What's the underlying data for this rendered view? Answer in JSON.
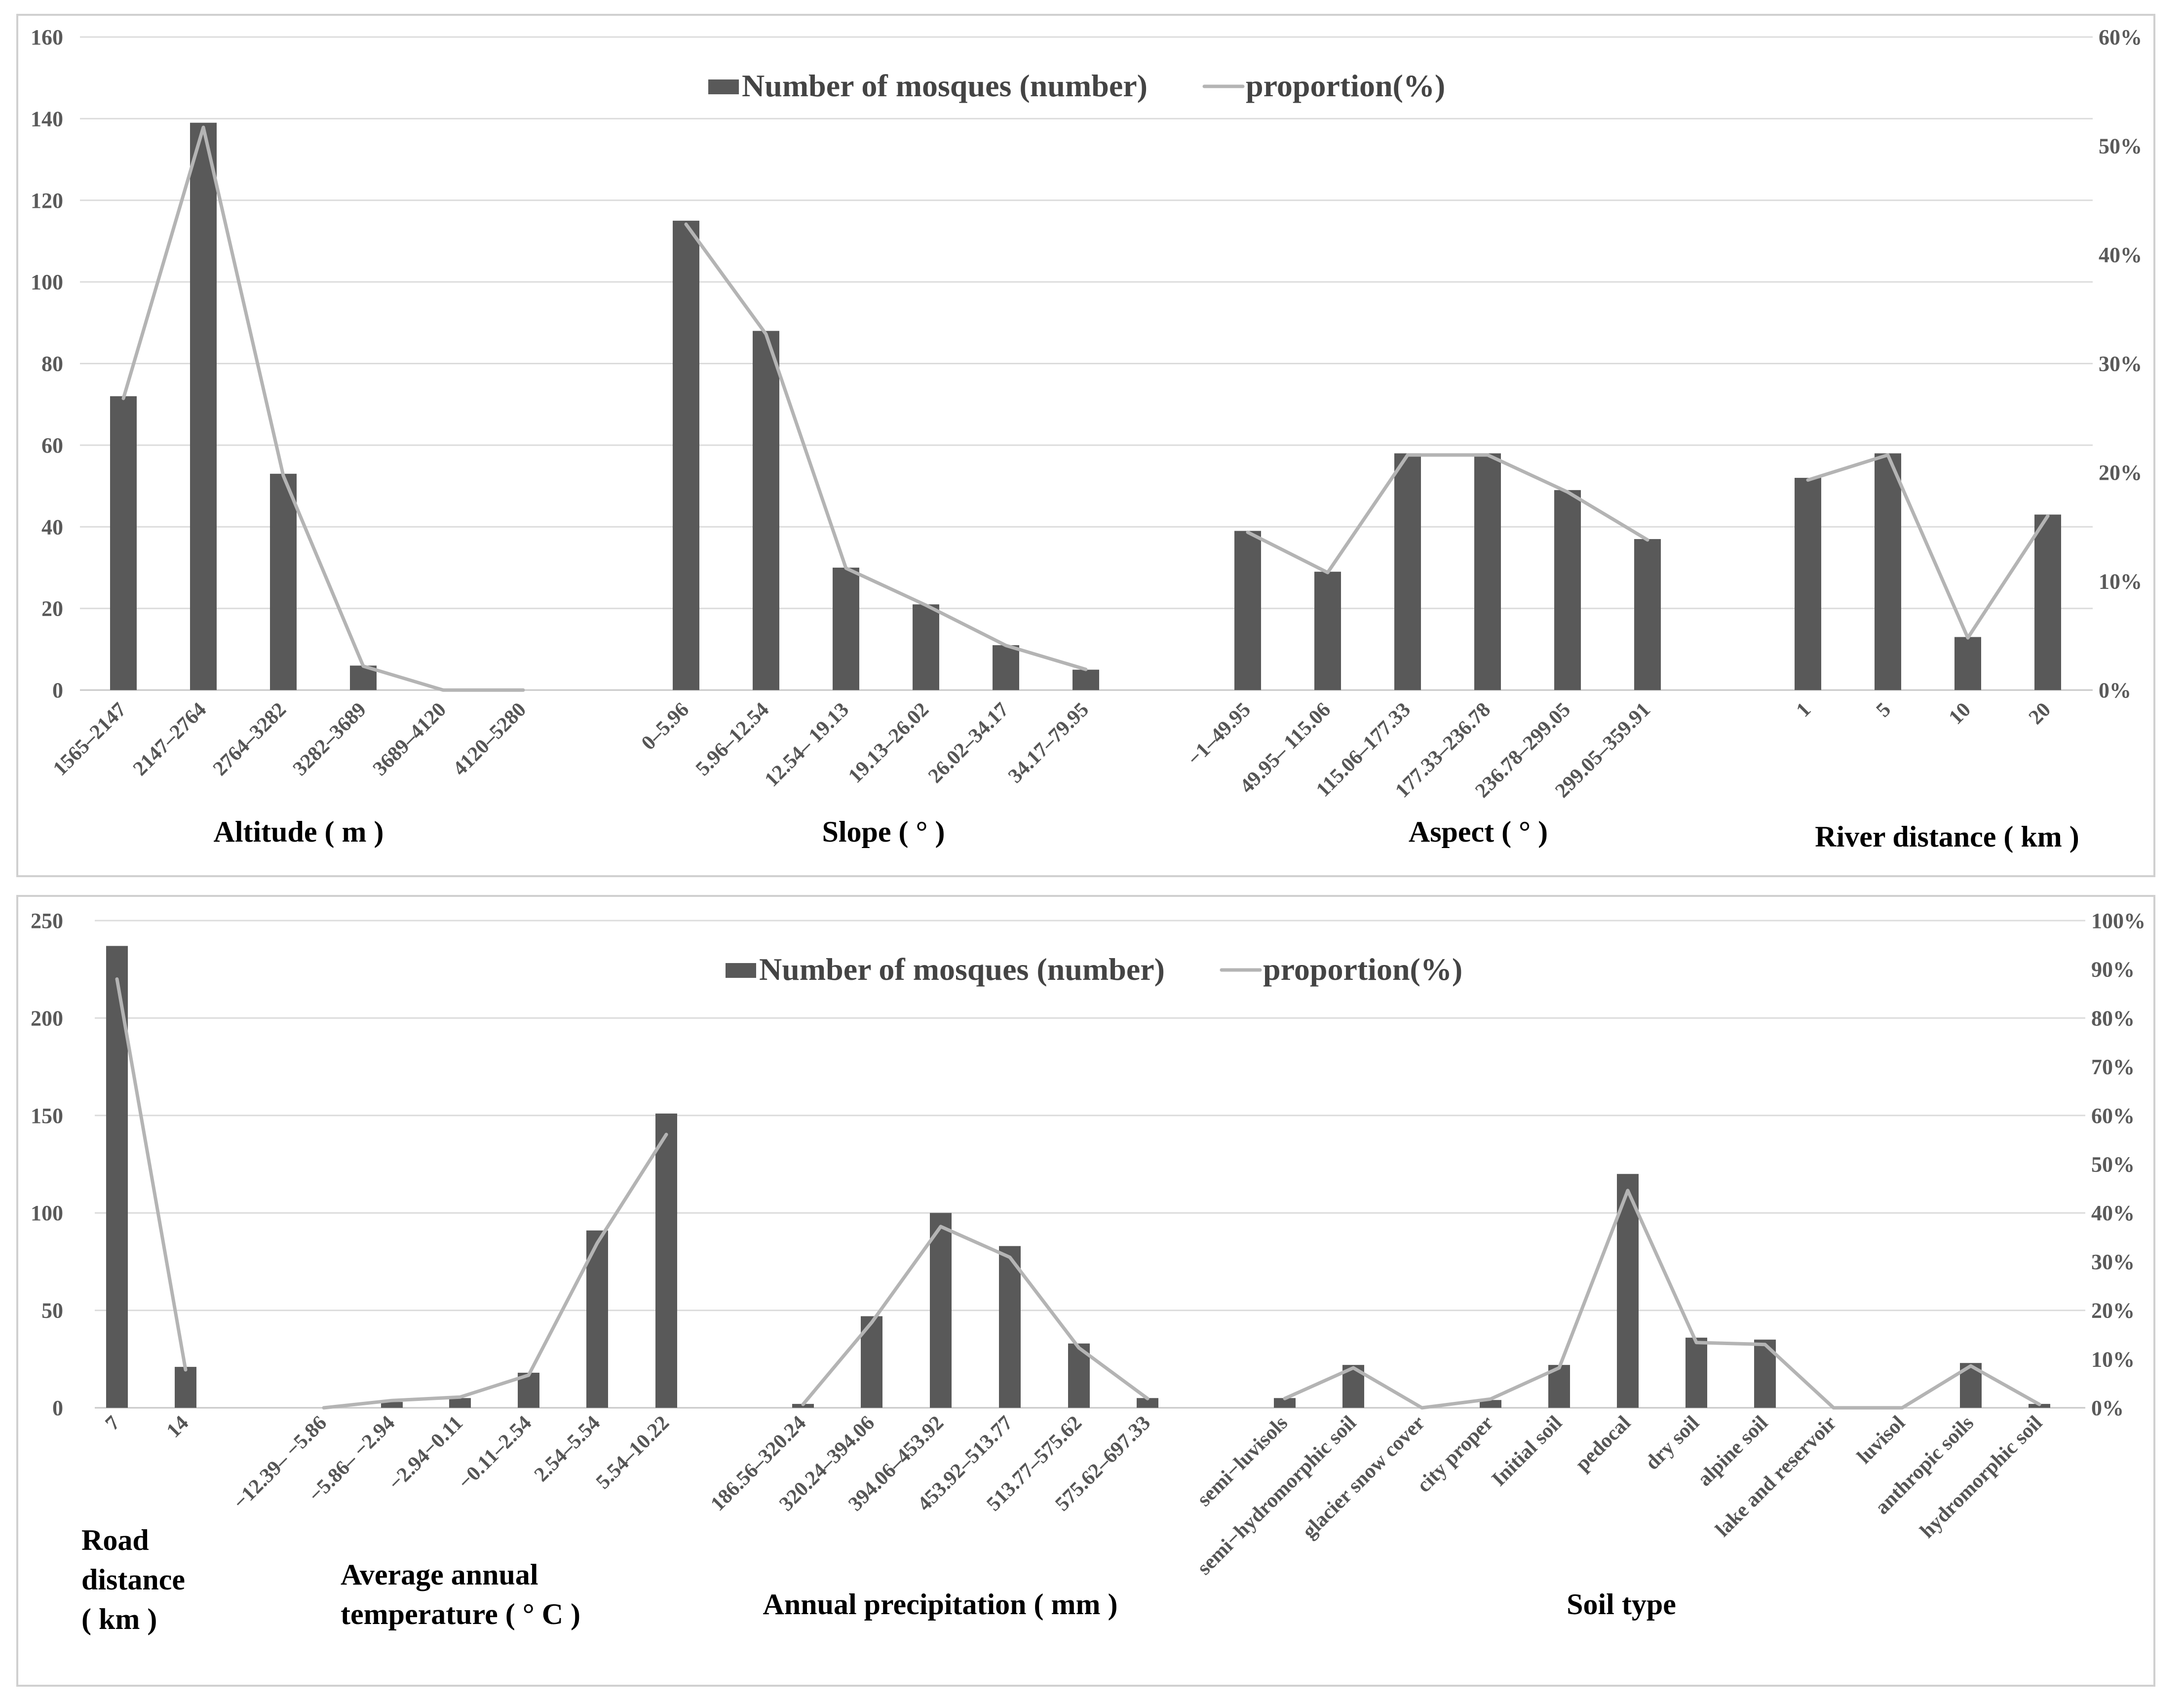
{
  "colors": {
    "bar": "#595959",
    "line": "#b4b4b4",
    "grid": "#dcdcdc",
    "frame": "#d0d0d0",
    "tick_text": "#5a5a5a"
  },
  "chart_data": [
    {
      "type": "bar",
      "panel": "top",
      "legend": {
        "bar_label": "Number of mosques (number)",
        "line_label": "proportion(%)"
      },
      "y_left": {
        "ylim": [
          0,
          160
        ],
        "ticks": [
          0,
          20,
          40,
          60,
          80,
          100,
          120,
          140,
          160
        ]
      },
      "y_right": {
        "ylim": [
          0,
          60
        ],
        "ticks": [
          "0%",
          "10%",
          "20%",
          "30%",
          "40%",
          "50%",
          "60%"
        ]
      },
      "groups": [
        {
          "title": "Altitude ( m )",
          "categories": [
            "1565–2147",
            "2147–2764",
            "2764–3282",
            "3282–3689",
            "3689–4120",
            "4120–5280"
          ],
          "values": [
            72,
            139,
            53,
            6,
            0,
            0
          ],
          "proportions": [
            26.8,
            51.7,
            19.7,
            2.2,
            0,
            0
          ]
        },
        {
          "title": "Slope ( ° )",
          "categories": [
            "0–5.96",
            "5.96–12.54",
            "12.54– 19.13",
            "19.13–26.02",
            "26.02–34.17",
            "34.17–79.95"
          ],
          "values": [
            115,
            88,
            30,
            21,
            11,
            5
          ],
          "proportions": [
            42.8,
            32.7,
            11.2,
            7.8,
            4.1,
            1.9
          ]
        },
        {
          "title": "Aspect ( ° )",
          "categories": [
            "−1–49.95",
            "49.95– 115.06",
            "115.06–177.33",
            "177.33–236.78",
            "236.78–299.05",
            "299.05–359.91"
          ],
          "values": [
            39,
            29,
            58,
            58,
            49,
            37
          ],
          "proportions": [
            14.5,
            10.8,
            21.6,
            21.6,
            18.2,
            13.8
          ]
        },
        {
          "title": "River distance ( km )",
          "categories": [
            "1",
            "5",
            "10",
            "20"
          ],
          "values": [
            52,
            58,
            13,
            43
          ],
          "proportions": [
            19.3,
            21.6,
            4.8,
            16.0
          ]
        }
      ]
    },
    {
      "type": "bar",
      "panel": "bottom",
      "legend": {
        "bar_label": "Number of mosques (number)",
        "line_label": "proportion(%)"
      },
      "y_left": {
        "ylim": [
          0,
          250
        ],
        "ticks": [
          0,
          50,
          100,
          150,
          200,
          250
        ]
      },
      "y_right": {
        "ylim": [
          0,
          100
        ],
        "ticks": [
          "0%",
          "10%",
          "20%",
          "30%",
          "40%",
          "50%",
          "60%",
          "70%",
          "80%",
          "90%",
          "100%"
        ]
      },
      "groups": [
        {
          "title": "Road distance ( km )",
          "title_lines": [
            "Road",
            "distance",
            "( km )"
          ],
          "categories": [
            "7",
            "14"
          ],
          "values": [
            237,
            21
          ],
          "proportions": [
            88.0,
            7.8
          ]
        },
        {
          "title": "Average annual temperature ( ° C )",
          "title_lines": [
            "Average annual",
            "temperature ( ° C )"
          ],
          "categories": [
            "−12.39– −5.86",
            "−5.86– −2.94",
            "−2.94−0.11",
            "−0.11–2.54",
            "2.54–5.54",
            "5.54–10.22"
          ],
          "values": [
            0,
            3,
            5,
            18,
            91,
            151
          ],
          "proportions": [
            0,
            1.5,
            2.2,
            6.7,
            33.8,
            56.1
          ]
        },
        {
          "title": "Annual precipitation ( mm )",
          "categories": [
            "186.56–320.24",
            "320.24–394.06",
            "394.06–453.92",
            "453.92–513.77",
            "513.77–575.62",
            "575.62–697.33"
          ],
          "values": [
            2,
            47,
            100,
            83,
            33,
            5
          ],
          "proportions": [
            0.7,
            17.5,
            37.2,
            30.9,
            12.3,
            1.9
          ]
        },
        {
          "title": "Soil type",
          "categories": [
            "semi−luvisols",
            "semi−hydromorphic soil",
            "glacier snow cover",
            "city proper",
            "Initial soil",
            "pedocal",
            "dry soil",
            "alpine soil",
            "lake and reservoir",
            "luvisol",
            "anthropic soils",
            "hydromorphic soil"
          ],
          "values": [
            5,
            22,
            0,
            4,
            22,
            120,
            36,
            35,
            0,
            0,
            23,
            2
          ],
          "proportions": [
            1.9,
            8.2,
            0,
            1.8,
            8.2,
            44.6,
            13.4,
            13.0,
            0,
            0,
            8.6,
            0.7
          ]
        }
      ]
    }
  ]
}
